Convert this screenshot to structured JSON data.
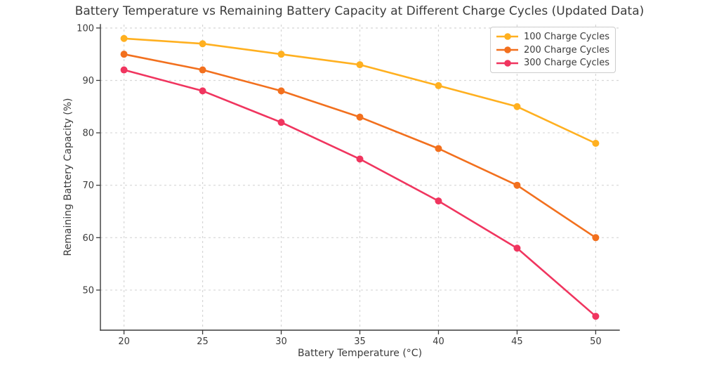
{
  "chart_data": {
    "type": "line",
    "title": "Battery Temperature vs Remaining Battery Capacity at Different Charge Cycles (Updated Data)",
    "xlabel": "Battery Temperature (°C)",
    "ylabel": "Remaining Battery Capacity (%)",
    "x": [
      20,
      25,
      30,
      35,
      40,
      45,
      50
    ],
    "series": [
      {
        "name": "100 Charge Cycles",
        "color": "#FFB020",
        "values": [
          98,
          97,
          95,
          93,
          89,
          85,
          78
        ]
      },
      {
        "name": "200 Charge Cycles",
        "color": "#F2701E",
        "values": [
          95,
          92,
          88,
          83,
          77,
          70,
          60
        ]
      },
      {
        "name": "300 Charge Cycles",
        "color": "#F0355F",
        "values": [
          92,
          88,
          82,
          75,
          67,
          58,
          45
        ]
      }
    ],
    "xticks": [
      20,
      25,
      30,
      35,
      40,
      45,
      50
    ],
    "yticks": [
      50,
      60,
      70,
      80,
      90,
      100
    ],
    "xlim": [
      18.5,
      51.5
    ],
    "ylim": [
      42.35,
      100.65
    ],
    "grid": true,
    "legend_position": "upper right"
  },
  "style_colors": {
    "grid": "#d6d6d6",
    "spine": "#3a3a3a",
    "tick_text": "#3b3b3b",
    "background": "#ffffff",
    "legend_border": "#cccccc"
  }
}
